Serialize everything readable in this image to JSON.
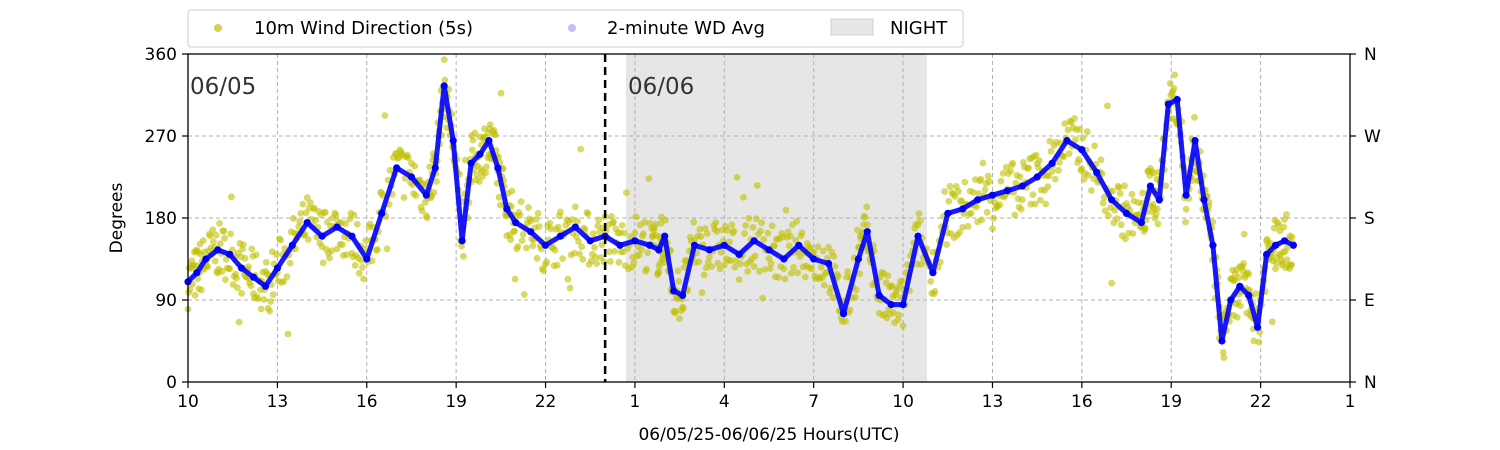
{
  "chart_data": {
    "type": "scatter",
    "xlabel": "06/05/25-06/06/25  Hours(UTC)",
    "ylabel": "Degrees",
    "x_ticks": [
      "10",
      "13",
      "16",
      "19",
      "22",
      "1",
      "4",
      "7",
      "10",
      "13",
      "16",
      "19",
      "22",
      "1"
    ],
    "x_range_hours": [
      10,
      49
    ],
    "ylim": [
      0,
      360
    ],
    "y_ticks": [
      0,
      90,
      180,
      270,
      360
    ],
    "y_ticks_right": [
      "N",
      "E",
      "S",
      "W",
      "N"
    ],
    "grid": true,
    "legend": {
      "placement": "top",
      "entries": [
        {
          "label": "10m Wind Direction (5s)",
          "color": "#bfbf00",
          "kind": "marker"
        },
        {
          "label": "2-minute WD Avg",
          "color": "#0000ff",
          "kind": "marker"
        },
        {
          "label": "NIGHT",
          "color": "#e6e6e6",
          "kind": "patch"
        }
      ]
    },
    "day_labels": [
      {
        "text": "06/05",
        "x": 10.0
      },
      {
        "text": "06/06",
        "x": 24.7
      }
    ],
    "midnight_line_x": 24.0,
    "night_span": [
      24.7,
      34.8
    ],
    "series": [
      {
        "name": "2-minute WD Avg",
        "color": "#0000ff",
        "x": [
          10.0,
          10.3,
          10.6,
          11.0,
          11.4,
          11.8,
          12.2,
          12.6,
          13.0,
          13.5,
          14.0,
          14.5,
          15.0,
          15.5,
          16.0,
          16.5,
          17.0,
          17.5,
          18.0,
          18.3,
          18.6,
          18.9,
          19.2,
          19.5,
          19.8,
          20.1,
          20.4,
          20.7,
          21.0,
          21.5,
          22.0,
          22.5,
          23.0,
          23.5,
          24.0,
          24.5,
          25.0,
          25.5,
          25.8,
          26.0,
          26.3,
          26.6,
          27.0,
          27.5,
          28.0,
          28.5,
          29.0,
          29.5,
          30.0,
          30.5,
          31.0,
          31.5,
          32.0,
          32.5,
          32.8,
          33.2,
          33.6,
          34.0,
          34.5,
          35.0,
          35.5,
          36.0,
          36.5,
          37.0,
          37.5,
          38.0,
          38.5,
          39.0,
          39.5,
          40.0,
          40.5,
          41.0,
          41.5,
          42.0,
          42.3,
          42.6,
          42.9,
          43.2,
          43.5,
          43.8,
          44.1,
          44.4,
          44.7,
          45.0,
          45.3,
          45.6,
          45.9,
          46.2,
          46.5,
          46.8,
          47.1
        ],
        "values": [
          110,
          120,
          135,
          145,
          140,
          125,
          115,
          105,
          125,
          150,
          175,
          160,
          170,
          160,
          135,
          185,
          235,
          225,
          205,
          235,
          325,
          265,
          155,
          240,
          250,
          265,
          235,
          190,
          175,
          165,
          150,
          160,
          170,
          155,
          160,
          150,
          155,
          150,
          145,
          160,
          100,
          95,
          150,
          145,
          150,
          140,
          155,
          145,
          135,
          150,
          135,
          130,
          75,
          135,
          165,
          95,
          85,
          85,
          160,
          120,
          185,
          190,
          200,
          205,
          210,
          215,
          225,
          240,
          265,
          255,
          230,
          200,
          185,
          175,
          215,
          200,
          305,
          310,
          205,
          265,
          200,
          150,
          45,
          90,
          105,
          95,
          60,
          140,
          150,
          155,
          150
        ]
      },
      {
        "name": "10m Wind Direction (5s)",
        "color": "#bfbf00",
        "x": [
          10.0,
          10.3,
          10.6,
          11.0,
          11.4,
          11.8,
          12.2,
          12.6,
          13.0,
          13.5,
          14.0,
          14.5,
          15.0,
          15.5,
          16.0,
          16.5,
          17.0,
          17.5,
          18.0,
          18.3,
          18.6,
          18.9,
          19.2,
          19.5,
          19.8,
          20.1,
          20.4,
          20.7,
          21.0,
          21.5,
          22.0,
          22.5,
          23.0,
          23.5,
          24.0,
          24.5,
          25.0,
          25.5,
          25.8,
          26.0,
          26.3,
          26.6,
          27.0,
          27.5,
          28.0,
          28.5,
          29.0,
          29.5,
          30.0,
          30.5,
          31.0,
          31.5,
          32.0,
          32.5,
          32.8,
          33.2,
          33.6,
          34.0,
          34.5,
          35.0,
          35.5,
          36.0,
          36.5,
          37.0,
          37.5,
          38.0,
          38.5,
          39.0,
          39.5,
          40.0,
          40.5,
          41.0,
          41.5,
          42.0,
          42.3,
          42.6,
          42.9,
          43.2,
          43.5,
          43.8,
          44.1,
          44.4,
          44.7,
          45.0,
          45.3,
          45.6,
          45.9,
          46.2,
          46.5,
          46.8,
          47.1
        ],
        "values": [
          110,
          120,
          135,
          145,
          140,
          125,
          115,
          105,
          125,
          150,
          175,
          160,
          170,
          160,
          135,
          185,
          235,
          225,
          205,
          235,
          325,
          265,
          155,
          240,
          250,
          265,
          235,
          190,
          175,
          165,
          150,
          160,
          170,
          155,
          160,
          150,
          155,
          150,
          145,
          160,
          100,
          95,
          150,
          145,
          150,
          140,
          155,
          145,
          135,
          150,
          135,
          130,
          75,
          135,
          165,
          95,
          85,
          85,
          160,
          120,
          185,
          190,
          200,
          205,
          210,
          215,
          225,
          240,
          265,
          255,
          230,
          200,
          185,
          175,
          215,
          200,
          305,
          310,
          205,
          265,
          200,
          150,
          45,
          90,
          105,
          95,
          60,
          140,
          150,
          155,
          150
        ],
        "spread": 30
      }
    ]
  }
}
